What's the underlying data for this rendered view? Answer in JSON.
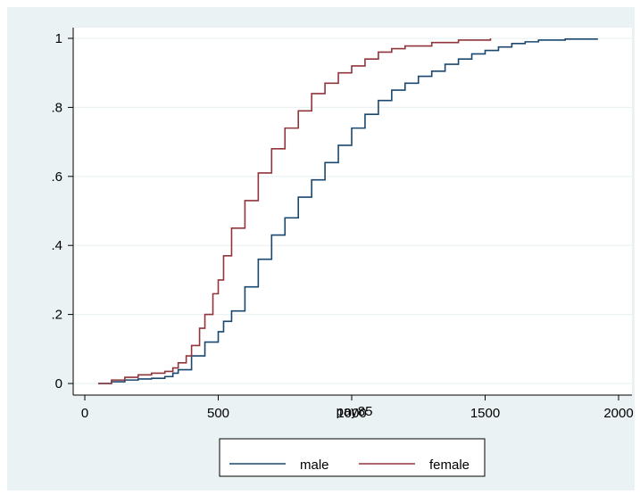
{
  "chart_data": {
    "type": "line",
    "title": "",
    "xlabel": "pay85",
    "ylabel": "",
    "xlim": [
      0,
      2000
    ],
    "ylim": [
      0,
      1
    ],
    "x_ticks": [
      {
        "value": 0,
        "label": "0"
      },
      {
        "value": 500,
        "label": "500"
      },
      {
        "value": 1000,
        "label": "1000"
      },
      {
        "value": 1500,
        "label": "1500"
      },
      {
        "value": 2000,
        "label": "2000"
      }
    ],
    "y_ticks": [
      {
        "value": 0,
        "label": "0"
      },
      {
        "value": 0.2,
        "label": ".2"
      },
      {
        "value": 0.4,
        "label": ".4"
      },
      {
        "value": 0.6,
        "label": ".6"
      },
      {
        "value": 0.8,
        "label": ".8"
      },
      {
        "value": 1,
        "label": "1"
      }
    ],
    "grid": "horizontal",
    "legend_position": "bottom",
    "series": [
      {
        "name": "male",
        "color": "#1a476f",
        "x": [
          50,
          100,
          150,
          200,
          250,
          300,
          330,
          350,
          400,
          450,
          500,
          520,
          550,
          600,
          650,
          700,
          750,
          800,
          850,
          900,
          950,
          1000,
          1050,
          1100,
          1150,
          1200,
          1250,
          1300,
          1350,
          1400,
          1450,
          1500,
          1550,
          1600,
          1650,
          1700,
          1800,
          1920
        ],
        "y": [
          0.0,
          0.005,
          0.01,
          0.013,
          0.015,
          0.02,
          0.03,
          0.04,
          0.08,
          0.12,
          0.15,
          0.18,
          0.21,
          0.28,
          0.36,
          0.43,
          0.48,
          0.54,
          0.59,
          0.64,
          0.69,
          0.74,
          0.78,
          0.82,
          0.85,
          0.87,
          0.89,
          0.905,
          0.925,
          0.94,
          0.955,
          0.965,
          0.975,
          0.985,
          0.99,
          0.995,
          0.998,
          1.0
        ]
      },
      {
        "name": "female",
        "color": "#90353b",
        "x": [
          50,
          100,
          150,
          200,
          250,
          300,
          330,
          350,
          380,
          400,
          430,
          450,
          480,
          500,
          520,
          550,
          600,
          650,
          700,
          750,
          800,
          850,
          900,
          950,
          1000,
          1050,
          1100,
          1150,
          1200,
          1300,
          1400,
          1520
        ],
        "y": [
          0.0,
          0.01,
          0.018,
          0.025,
          0.03,
          0.035,
          0.045,
          0.06,
          0.08,
          0.11,
          0.16,
          0.2,
          0.26,
          0.3,
          0.37,
          0.45,
          0.53,
          0.61,
          0.68,
          0.74,
          0.79,
          0.84,
          0.87,
          0.9,
          0.92,
          0.94,
          0.96,
          0.97,
          0.978,
          0.988,
          0.995,
          1.0
        ]
      }
    ]
  }
}
